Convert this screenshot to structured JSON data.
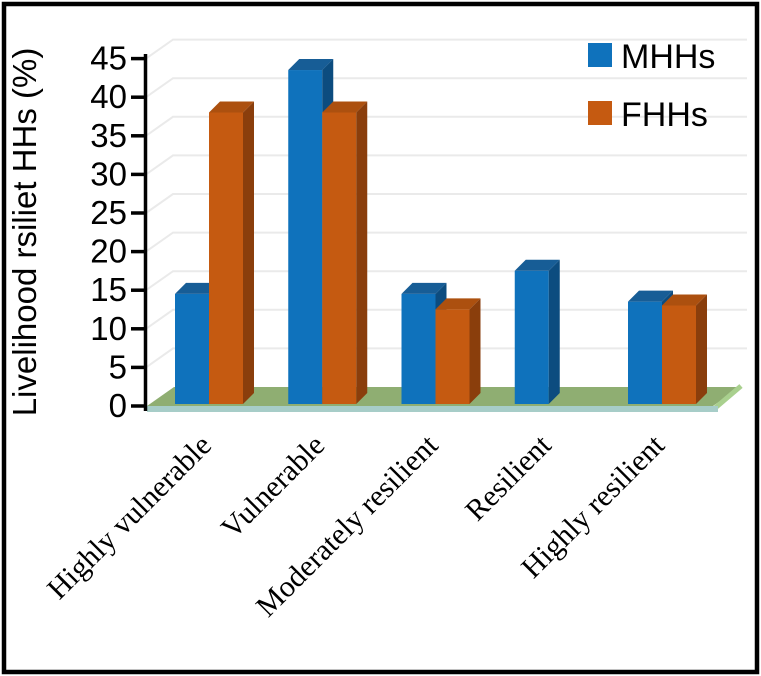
{
  "chart_data": {
    "type": "bar",
    "variant": "3d-clustered-column",
    "ylabel": "Livelihood rsiliet HHs (%)",
    "xlabel": "",
    "categories": [
      "Highly vulnerable",
      "Vulnerable",
      "Moderately resilient",
      "Resilient",
      "Highly resilient"
    ],
    "series": [
      {
        "name": "MHHs",
        "values": [
          14,
          43,
          14,
          17,
          13
        ],
        "color": "#0F72BC",
        "color_top": "#175D96",
        "color_side": "#0C4C7F"
      },
      {
        "name": "FHHs",
        "values": [
          37.5,
          37.5,
          12,
          0,
          12.5
        ],
        "color": "#C55A11",
        "color_top": "#AC500F",
        "color_side": "#8A3E0C"
      }
    ],
    "ylim": [
      0,
      45
    ],
    "ytick_step": 5,
    "yticks": [
      0,
      5,
      10,
      15,
      20,
      25,
      30,
      35,
      40,
      45
    ],
    "grid": "horizontal gridlines on back wall",
    "legend_position": "top-right inside plot",
    "colors": {
      "floor_top": "#8FAE72",
      "floor_front": "#A7CDC8",
      "floor_right_edge": "#A9D08E",
      "gridline": "#EAEAEA",
      "axis": "#000000",
      "text": "#000000",
      "figure_border": "#000000",
      "background": "#FFFFFF"
    }
  }
}
